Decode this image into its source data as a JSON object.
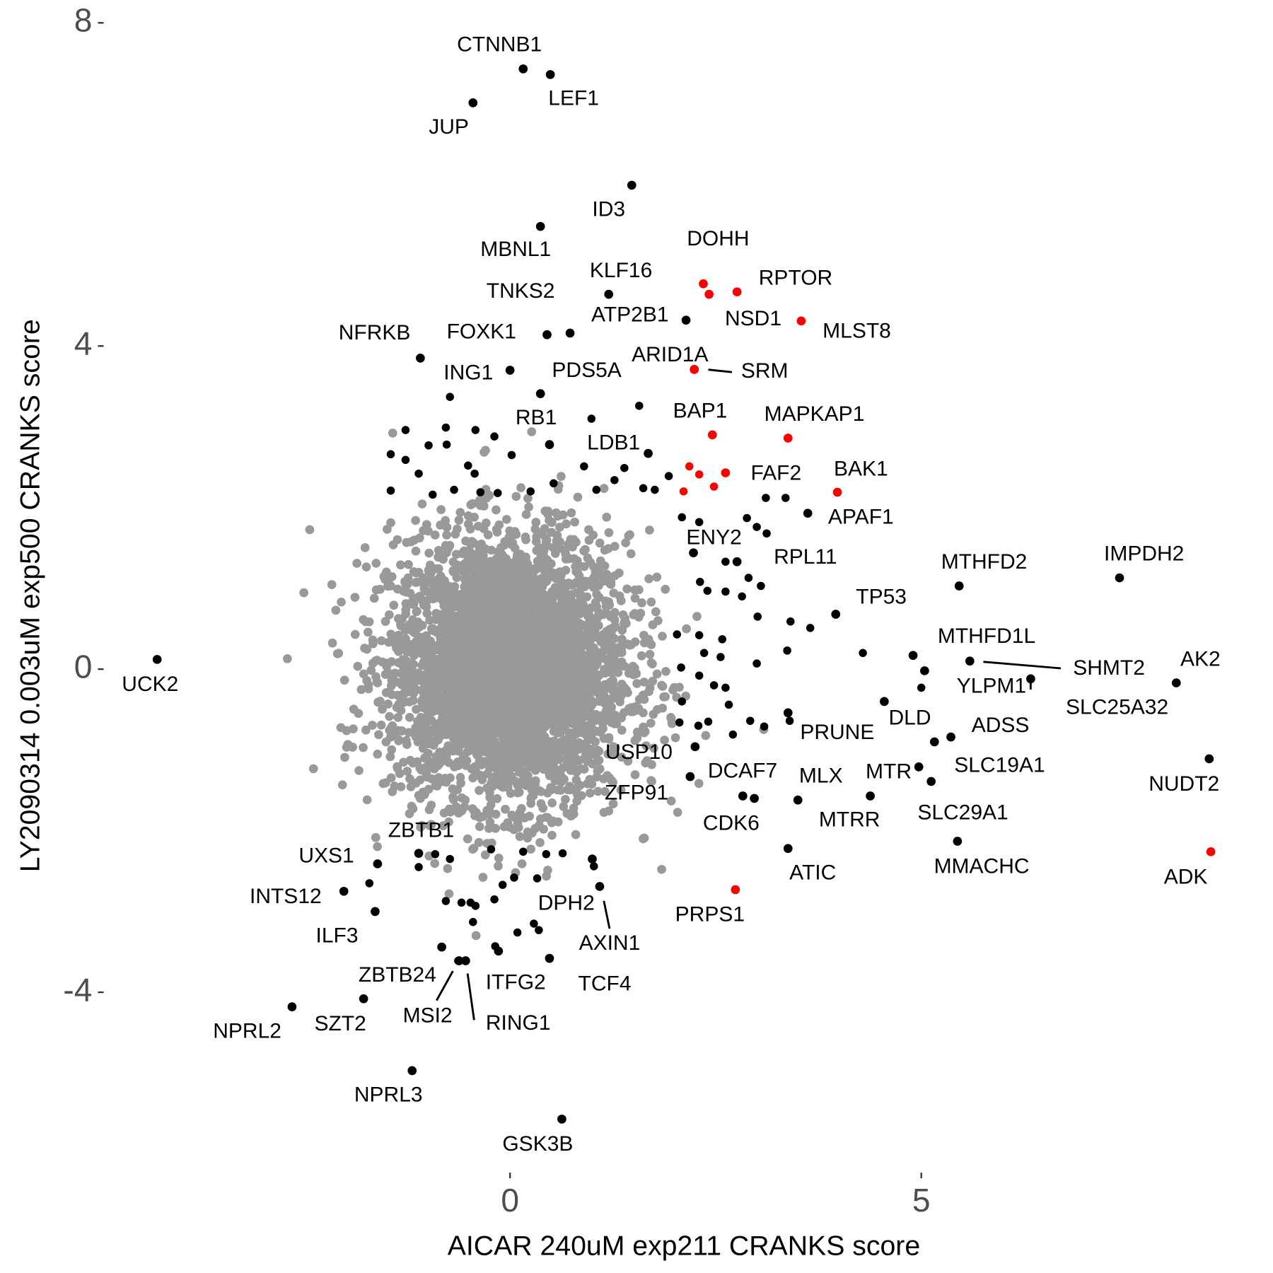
{
  "chart_data": {
    "type": "scatter",
    "xlabel": "AICAR 240uM exp211 CRANKS score",
    "ylabel": "LY2090314 0.003uM exp500 CRANKS score",
    "xlim": [
      -4.5,
      8.7
    ],
    "ylim": [
      -6.1,
      8.1
    ],
    "x_ticks": [
      {
        "value": 0,
        "label": "0"
      },
      {
        "value": 5,
        "label": "5"
      }
    ],
    "y_ticks": [
      {
        "value": 8,
        "label": "8"
      },
      {
        "value": 4,
        "label": "4"
      },
      {
        "value": 0,
        "label": "0"
      },
      {
        "value": -4,
        "label": "-4"
      }
    ],
    "grid": false,
    "colors": {
      "background_points": "#999999",
      "hit": "#000000",
      "highlight": "#ff0000"
    },
    "background_cloud": {
      "count": 4000,
      "center": [
        0,
        0
      ],
      "x_sd": 0.72,
      "y_sd": 0.82,
      "color": "#999999"
    },
    "labeled_points": [
      {
        "gene": "CTNNB1",
        "x": 0.16,
        "y": 7.43,
        "color": "#000000"
      },
      {
        "gene": "LEF1",
        "x": 0.49,
        "y": 7.36,
        "color": "#000000"
      },
      {
        "gene": "JUP",
        "x": -0.45,
        "y": 7.01,
        "color": "#000000"
      },
      {
        "gene": "ID3",
        "x": 1.48,
        "y": 5.99,
        "color": "#000000"
      },
      {
        "gene": "MBNL1",
        "x": 0.37,
        "y": 5.48,
        "color": "#000000"
      },
      {
        "gene": "DOHH",
        "x": 2.35,
        "y": 4.77,
        "color": "#ff0000"
      },
      {
        "gene": "RPTOR",
        "x": 2.76,
        "y": 4.67,
        "color": "#ff0000"
      },
      {
        "gene": "NSD1",
        "x": 2.42,
        "y": 4.64,
        "color": "#ff0000"
      },
      {
        "gene": "KLF16",
        "x": 1.2,
        "y": 4.64,
        "color": "#000000"
      },
      {
        "gene": "ATP2B1",
        "x": 2.14,
        "y": 4.32,
        "color": "#000000"
      },
      {
        "gene": "MLST8",
        "x": 3.54,
        "y": 4.31,
        "color": "#ff0000"
      },
      {
        "gene": "TNKS2",
        "x": 0.73,
        "y": 4.16,
        "color": "#000000"
      },
      {
        "gene": "FOXK1",
        "x": 0.45,
        "y": 4.14,
        "color": "#000000"
      },
      {
        "gene": "NFRKB",
        "x": -1.09,
        "y": 3.85,
        "color": "#000000"
      },
      {
        "gene": "ARID1A",
        "x": 2.24,
        "y": 3.71,
        "color": "#ff0000"
      },
      {
        "gene": "SRM",
        "x": 2.24,
        "y": 3.71,
        "color": "#ff0000"
      },
      {
        "gene": "ING1",
        "x": 0.0,
        "y": 3.7,
        "color": "#000000"
      },
      {
        "gene": "PDS5A",
        "x": 0.37,
        "y": 3.41,
        "color": "#000000"
      },
      {
        "gene": "RB1",
        "x": 0.48,
        "y": 2.78,
        "color": "#000000"
      },
      {
        "gene": "LDB1",
        "x": 1.68,
        "y": 2.67,
        "color": "#000000"
      },
      {
        "gene": "BAP1",
        "x": 2.46,
        "y": 2.9,
        "color": "#ff0000"
      },
      {
        "gene": "MAPKAP1",
        "x": 3.38,
        "y": 2.86,
        "color": "#ff0000"
      },
      {
        "gene": "BAK1",
        "x": 3.98,
        "y": 2.19,
        "color": "#ff0000"
      },
      {
        "gene": "FAF2",
        "x": 2.62,
        "y": 2.43,
        "color": "#ff0000"
      },
      {
        "gene": "APAF1",
        "x": 3.62,
        "y": 1.93,
        "color": "#000000"
      },
      {
        "gene": "ENY2",
        "x": 2.23,
        "y": 1.44,
        "color": "#000000"
      },
      {
        "gene": "RPL11",
        "x": 2.76,
        "y": 1.33,
        "color": "#000000"
      },
      {
        "gene": "MTHFD2",
        "x": 5.46,
        "y": 1.03,
        "color": "#000000"
      },
      {
        "gene": "IMPDH2",
        "x": 7.41,
        "y": 1.13,
        "color": "#000000"
      },
      {
        "gene": "TP53",
        "x": 3.96,
        "y": 0.68,
        "color": "#000000"
      },
      {
        "gene": "MTHFD1L",
        "x": 4.9,
        "y": 0.17,
        "color": "#000000"
      },
      {
        "gene": "SHMT2",
        "x": 5.59,
        "y": 0.1,
        "color": "#000000"
      },
      {
        "gene": "AK2",
        "x": 8.1,
        "y": -0.17,
        "color": "#000000"
      },
      {
        "gene": "YLPM1",
        "x": 6.33,
        "y": -0.12,
        "color": "#000000"
      },
      {
        "gene": "SLC25A32",
        "x": 5.04,
        "y": -0.02,
        "color": "#000000"
      },
      {
        "gene": "UCK2",
        "x": -4.29,
        "y": 0.12,
        "color": "#000000"
      },
      {
        "gene": "DLD",
        "x": 4.55,
        "y": -0.4,
        "color": "#000000"
      },
      {
        "gene": "PRUNE",
        "x": 3.38,
        "y": -0.54,
        "color": "#000000"
      },
      {
        "gene": "ADSS",
        "x": 5.36,
        "y": -0.84,
        "color": "#000000"
      },
      {
        "gene": "SLC19A1",
        "x": 5.12,
        "y": -1.39,
        "color": "#000000"
      },
      {
        "gene": "NUDT2",
        "x": 8.5,
        "y": -1.11,
        "color": "#000000"
      },
      {
        "gene": "MTR",
        "x": 4.97,
        "y": -1.21,
        "color": "#000000"
      },
      {
        "gene": "MLX",
        "x": 3.5,
        "y": -1.62,
        "color": "#000000"
      },
      {
        "gene": "MTRR",
        "x": 4.38,
        "y": -1.57,
        "color": "#000000"
      },
      {
        "gene": "DCAF7",
        "x": 2.97,
        "y": -1.6,
        "color": "#000000"
      },
      {
        "gene": "CDK6",
        "x": 2.83,
        "y": -1.57,
        "color": "#000000"
      },
      {
        "gene": "USP10",
        "x": 2.19,
        "y": -1.33,
        "color": "#000000"
      },
      {
        "gene": "ZFP91",
        "x": 2.25,
        "y": -0.96,
        "color": "#000000"
      },
      {
        "gene": "ATIC",
        "x": 3.38,
        "y": -2.22,
        "color": "#000000"
      },
      {
        "gene": "SLC29A1",
        "x": 5.16,
        "y": -0.9,
        "color": "#000000"
      },
      {
        "gene": "MMACHC",
        "x": 5.44,
        "y": -2.13,
        "color": "#000000"
      },
      {
        "gene": "ADK",
        "x": 8.52,
        "y": -2.26,
        "color": "#ff0000"
      },
      {
        "gene": "PRPS1",
        "x": 2.74,
        "y": -2.73,
        "color": "#ff0000"
      },
      {
        "gene": "ZBTB1",
        "x": -1.11,
        "y": -2.28,
        "color": "#000000"
      },
      {
        "gene": "UXS1",
        "x": -1.61,
        "y": -2.41,
        "color": "#000000"
      },
      {
        "gene": "INTS12",
        "x": -2.02,
        "y": -2.75,
        "color": "#000000"
      },
      {
        "gene": "ILF3",
        "x": -1.64,
        "y": -3.0,
        "color": "#000000"
      },
      {
        "gene": "DPH2",
        "x": 1.0,
        "y": -2.35,
        "color": "#000000"
      },
      {
        "gene": "AXIN1",
        "x": 1.09,
        "y": -2.69,
        "color": "#000000"
      },
      {
        "gene": "TCF4",
        "x": 0.48,
        "y": -3.58,
        "color": "#000000"
      },
      {
        "gene": "ITFG2",
        "x": -0.14,
        "y": -3.49,
        "color": "#000000"
      },
      {
        "gene": "ZBTB24",
        "x": -0.83,
        "y": -3.44,
        "color": "#000000"
      },
      {
        "gene": "MSI2",
        "x": -0.62,
        "y": -3.61,
        "color": "#000000"
      },
      {
        "gene": "RING1",
        "x": -0.54,
        "y": -3.61,
        "color": "#000000"
      },
      {
        "gene": "NPRL2",
        "x": -2.65,
        "y": -4.18,
        "color": "#000000"
      },
      {
        "gene": "SZT2",
        "x": -1.78,
        "y": -4.08,
        "color": "#000000"
      },
      {
        "gene": "NPRL3",
        "x": -1.19,
        "y": -4.97,
        "color": "#000000"
      },
      {
        "gene": "GSK3B",
        "x": 0.63,
        "y": -5.57,
        "color": "#000000"
      }
    ],
    "unlabeled_hits": [
      [
        -1.27,
        2.96
      ],
      [
        -0.78,
        2.99
      ],
      [
        -0.99,
        2.77
      ],
      [
        -0.77,
        2.78
      ],
      [
        -0.42,
        2.96
      ],
      [
        -0.19,
        2.88
      ],
      [
        0.02,
        2.65
      ],
      [
        -1.45,
        2.66
      ],
      [
        -1.27,
        2.59
      ],
      [
        -1.11,
        2.42
      ],
      [
        -0.51,
        2.52
      ],
      [
        -0.43,
        2.42
      ],
      [
        -1.45,
        2.21
      ],
      [
        -0.94,
        2.16
      ],
      [
        -0.68,
        2.22
      ],
      [
        -0.36,
        2.19
      ],
      [
        -0.15,
        2.18
      ],
      [
        0.25,
        2.2
      ],
      [
        0.53,
        2.3
      ],
      [
        0.9,
        2.51
      ],
      [
        1.05,
        2.22
      ],
      [
        1.27,
        2.34
      ],
      [
        1.39,
        2.49
      ],
      [
        1.62,
        2.24
      ],
      [
        1.76,
        2.22
      ],
      [
        1.93,
        2.39
      ],
      [
        1.57,
        3.26
      ],
      [
        0.99,
        3.1
      ],
      [
        -0.73,
        3.37
      ],
      [
        2.09,
        1.88
      ],
      [
        2.3,
        1.82
      ],
      [
        2.88,
        1.87
      ],
      [
        3.11,
        2.12
      ],
      [
        3.35,
        2.12
      ],
      [
        3.0,
        1.76
      ],
      [
        3.12,
        1.68
      ],
      [
        2.62,
        1.33
      ],
      [
        2.31,
        1.08
      ],
      [
        2.4,
        0.97
      ],
      [
        2.62,
        0.96
      ],
      [
        2.82,
        0.9
      ],
      [
        2.9,
        1.13
      ],
      [
        3.05,
        1.03
      ],
      [
        3.01,
        0.65
      ],
      [
        3.41,
        0.59
      ],
      [
        3.65,
        0.51
      ],
      [
        4.29,
        0.2
      ],
      [
        5.0,
        -0.23
      ],
      [
        2.03,
        0.43
      ],
      [
        2.3,
        0.42
      ],
      [
        2.58,
        0.37
      ],
      [
        2.36,
        0.2
      ],
      [
        2.56,
        0.15
      ],
      [
        3.0,
        0.07
      ],
      [
        3.37,
        0.23
      ],
      [
        2.08,
        0.02
      ],
      [
        2.3,
        -0.08
      ],
      [
        2.48,
        -0.2
      ],
      [
        2.62,
        -0.23
      ],
      [
        2.09,
        -0.4
      ],
      [
        2.66,
        -0.44
      ],
      [
        2.41,
        -0.65
      ],
      [
        2.06,
        -0.66
      ],
      [
        2.29,
        -0.7
      ],
      [
        2.71,
        -0.81
      ],
      [
        2.92,
        -0.64
      ],
      [
        3.4,
        -0.64
      ],
      [
        3.09,
        -0.71
      ],
      [
        2.19,
        -1.33
      ],
      [
        -1.11,
        -2.45
      ],
      [
        -0.91,
        -2.29
      ],
      [
        -0.73,
        -2.35
      ],
      [
        -1.71,
        -2.65
      ],
      [
        -0.78,
        -2.87
      ],
      [
        -0.59,
        -2.89
      ],
      [
        -0.48,
        -2.89
      ],
      [
        -0.42,
        -2.93
      ],
      [
        -0.45,
        -3.13
      ],
      [
        -0.19,
        -2.85
      ],
      [
        -0.09,
        -2.67
      ],
      [
        0.05,
        -2.58
      ],
      [
        -0.23,
        -2.23
      ],
      [
        0.16,
        -2.26
      ],
      [
        0.44,
        -2.29
      ],
      [
        0.33,
        -2.59
      ],
      [
        1.02,
        -2.44
      ],
      [
        0.29,
        -3.15
      ],
      [
        0.09,
        -3.26
      ],
      [
        0.35,
        -3.23
      ],
      [
        -0.18,
        -3.43
      ],
      [
        -0.63,
        -3.61
      ],
      [
        0.64,
        -2.28
      ]
    ],
    "unlabeled_highlights": [
      [
        2.18,
        2.51
      ],
      [
        2.3,
        2.41
      ],
      [
        2.11,
        2.2
      ],
      [
        2.48,
        2.26
      ]
    ]
  }
}
